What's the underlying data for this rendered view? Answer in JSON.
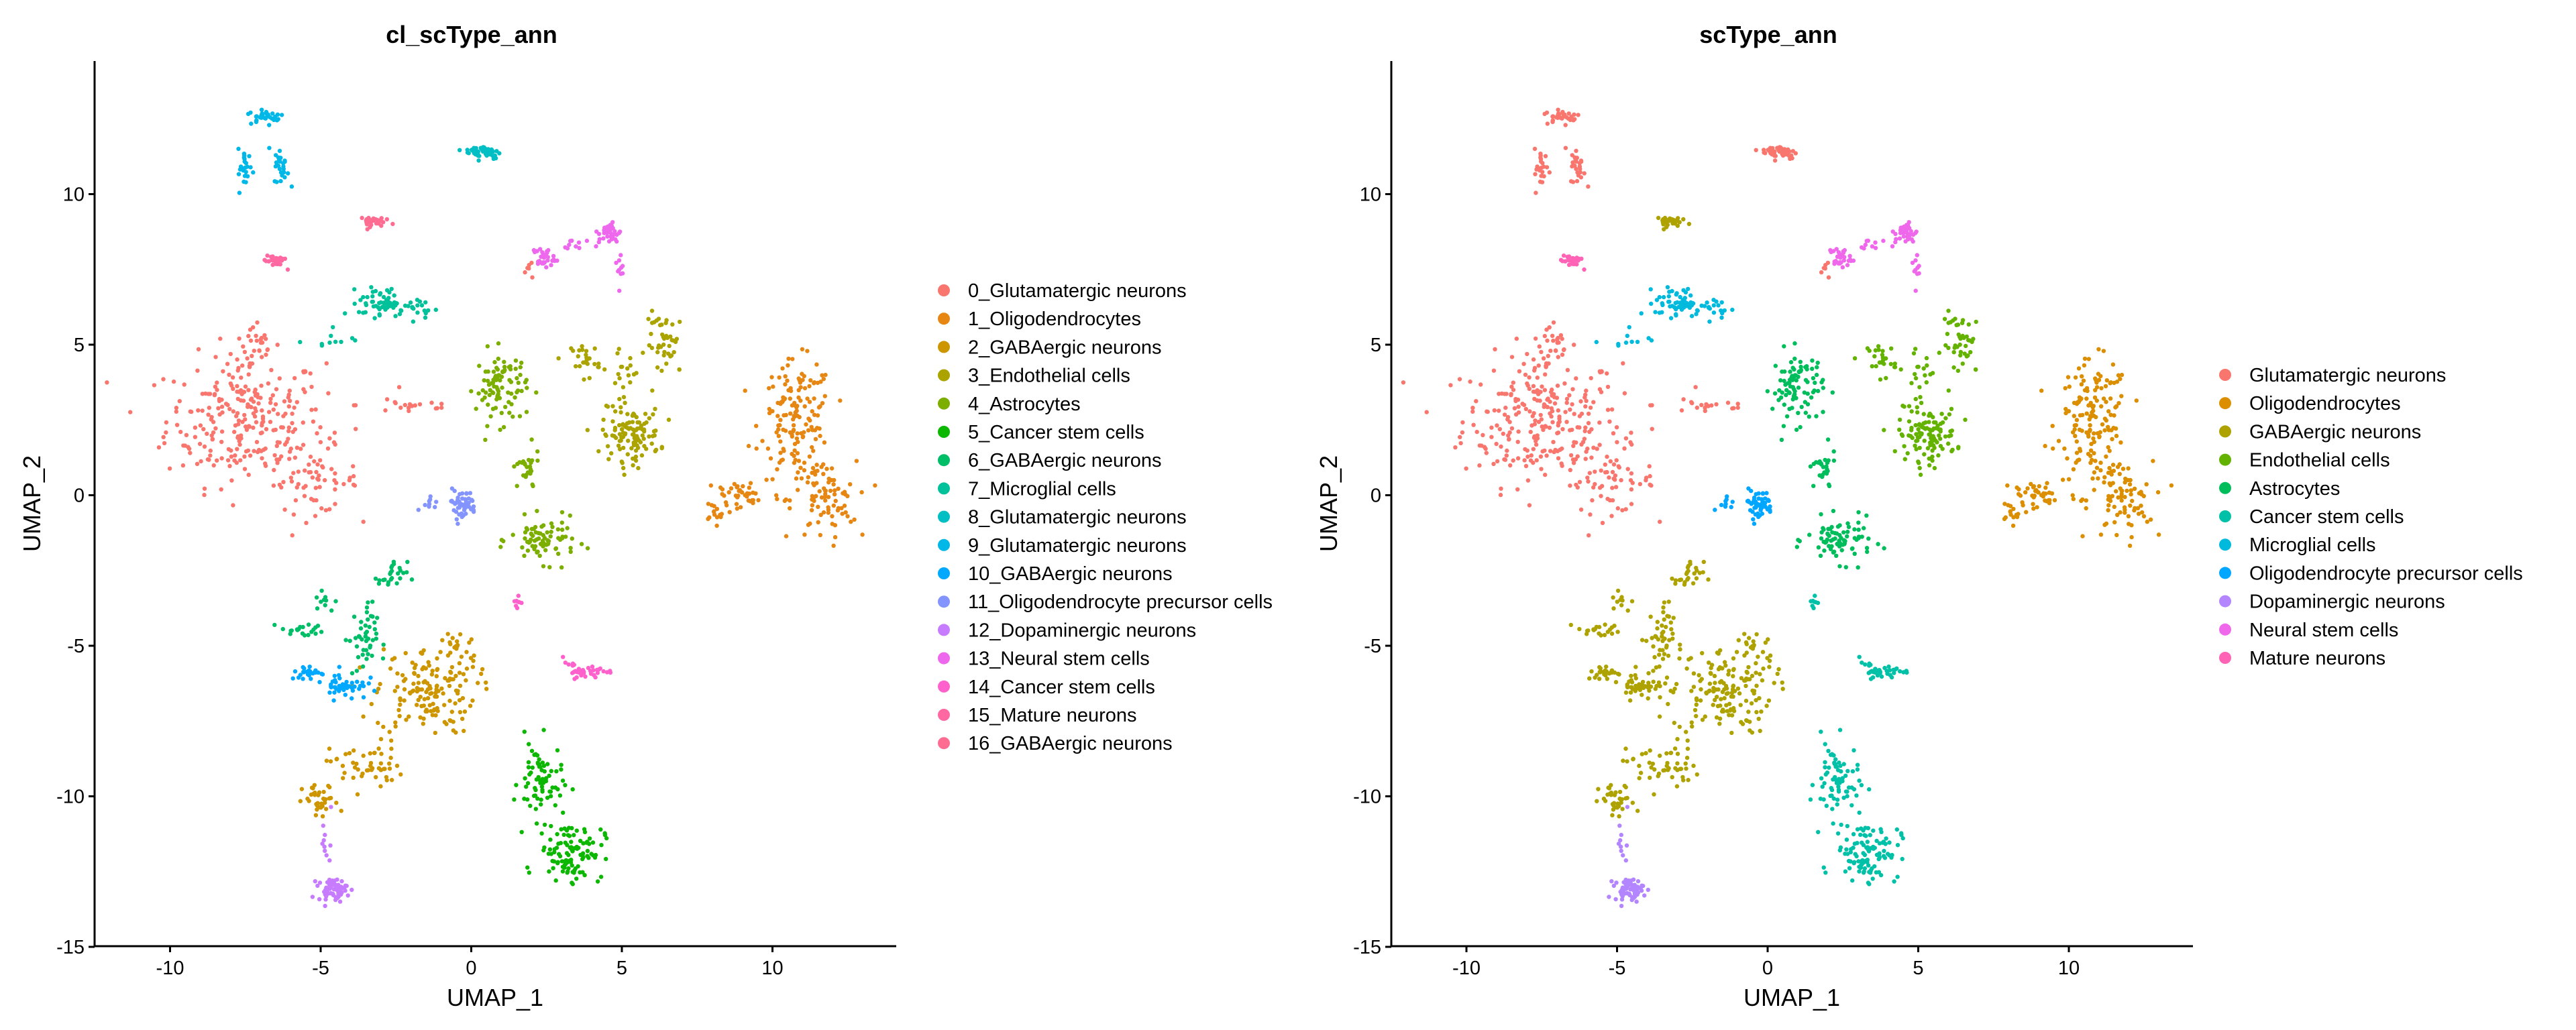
{
  "chart_data": [
    {
      "type": "scatter",
      "title": "cl_scType_ann",
      "xlabel": "UMAP_1",
      "ylabel": "UMAP_2",
      "xlim": [
        -12.5,
        14.1
      ],
      "ylim": [
        -15,
        14.4
      ],
      "xticks": [
        -10,
        -5,
        0,
        5,
        10
      ],
      "yticks": [
        -15,
        -10,
        -5,
        0,
        5,
        10
      ],
      "grid": false,
      "legend_position": "right",
      "legend": [
        {
          "label": "0_Glutamatergic neurons",
          "color": "#F8766D"
        },
        {
          "label": "1_Oligodendrocytes",
          "color": "#E68613"
        },
        {
          "label": "2_GABAergic neurons",
          "color": "#CD9600"
        },
        {
          "label": "3_Endothelial cells",
          "color": "#ABA300"
        },
        {
          "label": "4_Astrocytes",
          "color": "#7CAE00"
        },
        {
          "label": "5_Cancer stem cells",
          "color": "#0CB702"
        },
        {
          "label": "6_GABAergic neurons",
          "color": "#00BE67"
        },
        {
          "label": "7_Microglial cells",
          "color": "#00C19A"
        },
        {
          "label": "8_Glutamatergic neurons",
          "color": "#00BFC4"
        },
        {
          "label": "9_Glutamatergic neurons",
          "color": "#00B8E7"
        },
        {
          "label": "10_GABAergic neurons",
          "color": "#00A9FF"
        },
        {
          "label": "11_Oligodendrocyte precursor cells",
          "color": "#8494FF"
        },
        {
          "label": "12_Dopaminergic neurons",
          "color": "#C77CFF"
        },
        {
          "label": "13_Neural stem cells",
          "color": "#ED68ED"
        },
        {
          "label": "14_Cancer stem cells",
          "color": "#FF61CC"
        },
        {
          "label": "15_Mature neurons",
          "color": "#FF68A1"
        },
        {
          "label": "16_GABAergic neurons",
          "color": "#FF6C91"
        }
      ]
    },
    {
      "type": "scatter",
      "title": "scType_ann",
      "xlabel": "UMAP_1",
      "ylabel": "UMAP_2",
      "xlim": [
        -12.5,
        14.1
      ],
      "ylim": [
        -15,
        14.4
      ],
      "xticks": [
        -10,
        -5,
        0,
        5,
        10
      ],
      "yticks": [
        -15,
        -10,
        -5,
        0,
        5,
        10
      ],
      "grid": false,
      "legend_position": "right",
      "legend": [
        {
          "label": "Glutamatergic neurons",
          "color": "#F8766D"
        },
        {
          "label": "Oligodendrocytes",
          "color": "#DB8E00"
        },
        {
          "label": "GABAergic neurons",
          "color": "#AEA200"
        },
        {
          "label": "Endothelial cells",
          "color": "#64B200"
        },
        {
          "label": "Astrocytes",
          "color": "#00BD5C"
        },
        {
          "label": "Cancer stem cells",
          "color": "#00C1A7"
        },
        {
          "label": "Microglial cells",
          "color": "#00BADE"
        },
        {
          "label": "Oligodendrocyte precursor cells",
          "color": "#00A6FF"
        },
        {
          "label": "Dopaminergic neurons",
          "color": "#B385FF"
        },
        {
          "label": "Neural stem cells",
          "color": "#EF67EB"
        },
        {
          "label": "Mature neurons",
          "color": "#FF63B6"
        }
      ]
    }
  ],
  "clusters": [
    {
      "id": 0,
      "right_type": 0,
      "blobs": [
        [
          -7.5,
          2.5,
          2.2,
          1.8,
          260
        ],
        [
          -5.2,
          0.5,
          1.2,
          0.9,
          60
        ],
        [
          -7.2,
          4.8,
          0.6,
          0.8,
          30
        ],
        [
          -2.0,
          3.0,
          1.5,
          0.3,
          20
        ],
        [
          2.0,
          7.5,
          0.3,
          0.3,
          6
        ]
      ]
    },
    {
      "id": 1,
      "right_type": 1,
      "blobs": [
        [
          10.8,
          2.5,
          1.0,
          1.6,
          150
        ],
        [
          11.7,
          -0.2,
          0.9,
          1.1,
          80
        ],
        [
          9.0,
          0.0,
          1.1,
          0.5,
          40
        ],
        [
          8.2,
          -0.5,
          0.4,
          0.3,
          15
        ]
      ]
    },
    {
      "id": 2,
      "right_type": 2,
      "blobs": [
        [
          -1.5,
          -6.5,
          1.4,
          1.2,
          150
        ],
        [
          -3.5,
          -9.0,
          1.0,
          0.7,
          50
        ],
        [
          -5.0,
          -10.2,
          0.5,
          0.5,
          35
        ],
        [
          -0.4,
          -5.0,
          0.6,
          0.6,
          20
        ]
      ]
    },
    {
      "id": 3,
      "right_type": 3,
      "blobs": [
        [
          5.3,
          2.0,
          0.8,
          0.7,
          110
        ],
        [
          6.5,
          5.0,
          0.6,
          0.9,
          45
        ],
        [
          3.8,
          4.5,
          0.4,
          0.5,
          25
        ],
        [
          5.0,
          3.8,
          0.4,
          0.8,
          20
        ]
      ]
    },
    {
      "id": 4,
      "right_type": 4,
      "blobs": [
        [
          1.0,
          3.6,
          0.7,
          1.0,
          90
        ],
        [
          2.4,
          -1.5,
          0.9,
          0.6,
          80
        ],
        [
          1.8,
          0.8,
          0.4,
          0.6,
          25
        ]
      ]
    },
    {
      "id": 5,
      "right_type": 5,
      "blobs": [
        [
          2.3,
          -9.5,
          0.6,
          1.1,
          70
        ],
        [
          3.3,
          -11.8,
          0.9,
          0.8,
          110
        ]
      ]
    },
    {
      "id": 6,
      "right_type": 2,
      "blobs": [
        [
          -3.6,
          -4.8,
          0.4,
          1.0,
          45
        ],
        [
          -2.6,
          -2.7,
          0.4,
          0.4,
          25
        ],
        [
          -5.6,
          -4.5,
          0.6,
          0.2,
          20
        ],
        [
          -5.0,
          -3.5,
          0.4,
          0.4,
          10
        ]
      ]
    },
    {
      "id": 7,
      "right_type": 6,
      "blobs": [
        [
          -3.0,
          6.4,
          0.6,
          0.4,
          55
        ],
        [
          -1.8,
          6.2,
          0.6,
          0.3,
          20
        ],
        [
          -4.8,
          5.2,
          0.8,
          0.3,
          10
        ]
      ]
    },
    {
      "id": 8,
      "right_type": 0,
      "blobs": [
        [
          0.4,
          11.4,
          0.5,
          0.2,
          50
        ]
      ]
    },
    {
      "id": 9,
      "right_type": 0,
      "blobs": [
        [
          -6.8,
          12.6,
          0.5,
          0.2,
          35
        ],
        [
          -7.5,
          10.8,
          0.2,
          0.6,
          25
        ],
        [
          -6.3,
          10.9,
          0.2,
          0.5,
          25
        ]
      ]
    },
    {
      "id": 10,
      "right_type": 2,
      "blobs": [
        [
          -5.4,
          -5.9,
          0.5,
          0.2,
          25
        ],
        [
          -4.2,
          -6.3,
          0.6,
          0.4,
          45
        ]
      ]
    },
    {
      "id": 11,
      "right_type": 7,
      "blobs": [
        [
          -0.3,
          -0.3,
          0.4,
          0.4,
          55
        ],
        [
          -1.3,
          -0.2,
          0.5,
          0.2,
          10
        ]
      ]
    },
    {
      "id": 12,
      "right_type": 8,
      "blobs": [
        [
          -4.6,
          -13.1,
          0.4,
          0.3,
          60
        ],
        [
          -4.8,
          -11.5,
          0.15,
          0.7,
          10
        ]
      ]
    },
    {
      "id": 13,
      "right_type": 9,
      "blobs": [
        [
          4.6,
          8.7,
          0.3,
          0.3,
          40
        ],
        [
          2.4,
          7.9,
          0.3,
          0.3,
          30
        ],
        [
          3.5,
          8.3,
          0.6,
          0.15,
          10
        ],
        [
          4.9,
          7.6,
          0.1,
          0.6,
          10
        ]
      ]
    },
    {
      "id": 14,
      "right_type": 5,
      "blobs": [
        [
          3.4,
          -5.8,
          0.3,
          0.2,
          20
        ],
        [
          4.2,
          -5.9,
          0.5,
          0.15,
          20
        ],
        [
          1.5,
          -3.5,
          0.1,
          0.3,
          8
        ]
      ]
    },
    {
      "id": 15,
      "right_type": 10,
      "blobs": [
        [
          -6.5,
          7.8,
          0.3,
          0.2,
          30
        ]
      ]
    },
    {
      "id": 16,
      "right_type": 2,
      "blobs": [
        [
          -3.4,
          9.1,
          0.4,
          0.15,
          30
        ]
      ]
    }
  ]
}
